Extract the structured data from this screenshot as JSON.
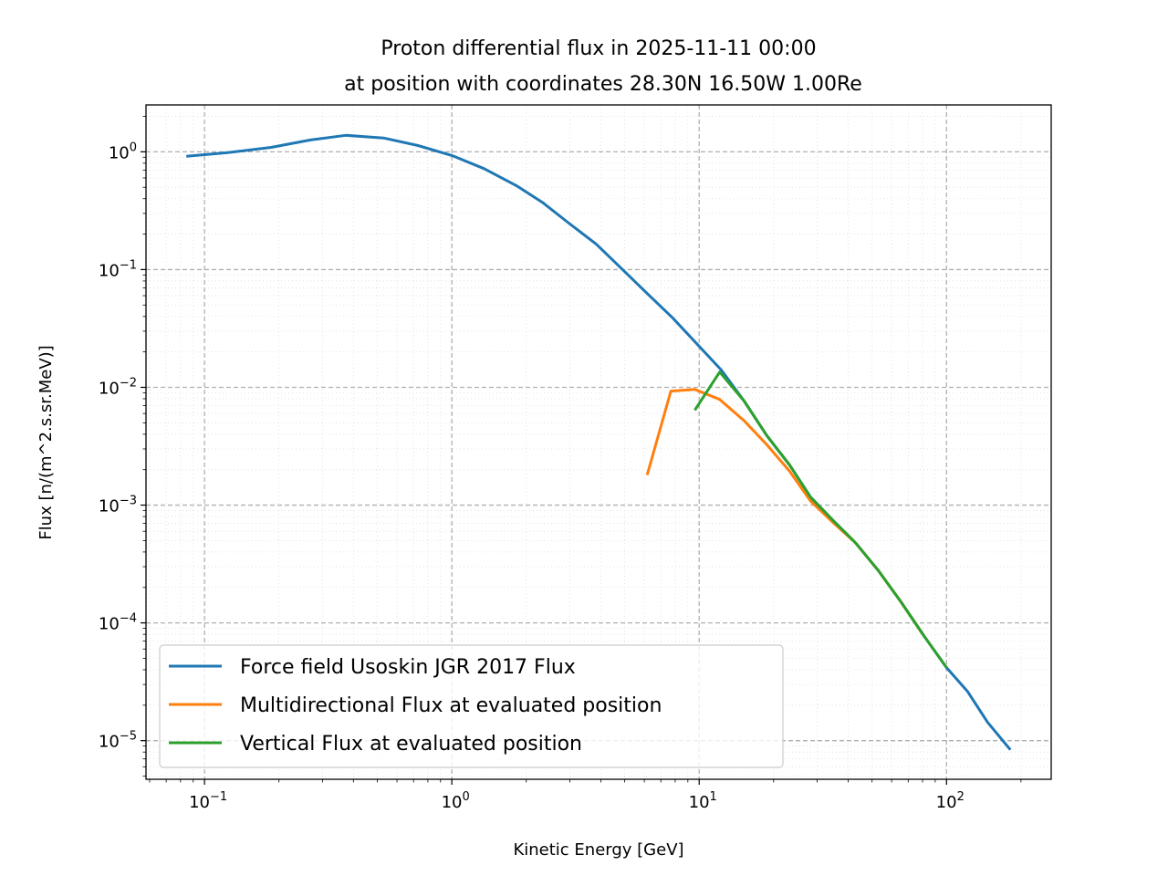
{
  "chart_data": {
    "type": "line",
    "title": "Proton differential flux in 2025-11-11 00:00",
    "subtitle": "at position with coordinates 28.30N 16.50W 1.00Re",
    "xlabel": "Kinetic Energy [GeV]",
    "ylabel": "Flux [n/(m^2.s.sr.MeV)]",
    "xscale": "log",
    "yscale": "log",
    "xlim": [
      0.058,
      265
    ],
    "ylim": [
      4.7e-06,
      2.5
    ],
    "x_ticks": [
      {
        "v": 0.1,
        "base": "10",
        "exp": "−1"
      },
      {
        "v": 1,
        "base": "10",
        "exp": "0"
      },
      {
        "v": 10,
        "base": "10",
        "exp": "1"
      },
      {
        "v": 100,
        "base": "10",
        "exp": "2"
      }
    ],
    "y_ticks": [
      {
        "v": 1,
        "base": "10",
        "exp": "0"
      },
      {
        "v": 0.1,
        "base": "10",
        "exp": "−1"
      },
      {
        "v": 0.01,
        "base": "10",
        "exp": "−2"
      },
      {
        "v": 0.001,
        "base": "10",
        "exp": "−3"
      },
      {
        "v": 0.0001,
        "base": "10",
        "exp": "−4"
      },
      {
        "v": 1e-05,
        "base": "10",
        "exp": "−5"
      }
    ],
    "grid": true,
    "legend_position": "lower-left",
    "series": [
      {
        "name": "Force field Usoskin JGR 2017 Flux",
        "color": "#1f77b4",
        "x": [
          0.0844,
          0.1227,
          0.186,
          0.268,
          0.373,
          0.529,
          0.73,
          1.0,
          1.35,
          1.84,
          2.34,
          2.97,
          3.83,
          4.9,
          6.21,
          7.81,
          10.0,
          12.3,
          15.2,
          18.8,
          23.2,
          28.2,
          34.6,
          42.8,
          52.9,
          65.4,
          80.9,
          100,
          121.6,
          146.6,
          181.3
        ],
        "y": [
          0.915,
          0.982,
          1.09,
          1.26,
          1.38,
          1.31,
          1.13,
          0.93,
          0.72,
          0.51,
          0.368,
          0.248,
          0.165,
          0.1,
          0.0618,
          0.0389,
          0.0223,
          0.014,
          0.00765,
          0.00388,
          0.00219,
          0.00117,
          0.00075,
          0.00048,
          0.00028,
          0.000151,
          7.8e-05,
          4.17e-05,
          2.62e-05,
          1.43e-05,
          8.36e-06
        ]
      },
      {
        "name": "Multidirectional Flux at evaluated position",
        "color": "#ff7f0e",
        "x": [
          6.16,
          7.68,
          9.6,
          12.1,
          15.2,
          18.8,
          23.2,
          28.2,
          34.6,
          42.8,
          52.9,
          65.4,
          80.9
        ],
        "y": [
          0.0018,
          0.0093,
          0.0096,
          0.0079,
          0.0052,
          0.00325,
          0.00194,
          0.00108,
          0.00072,
          0.00048,
          0.00028,
          0.000151,
          7.8e-05
        ]
      },
      {
        "name": "Vertical Flux at evaluated position",
        "color": "#2ca02c",
        "x": [
          9.6,
          12.1,
          15.2,
          18.8,
          23.2,
          28.2,
          34.6,
          42.8,
          52.9,
          65.4,
          80.9,
          100
        ],
        "y": [
          0.0064,
          0.0135,
          0.00765,
          0.00388,
          0.00219,
          0.00117,
          0.00075,
          0.00048,
          0.00028,
          0.000151,
          7.8e-05,
          4.17e-05
        ]
      }
    ]
  }
}
